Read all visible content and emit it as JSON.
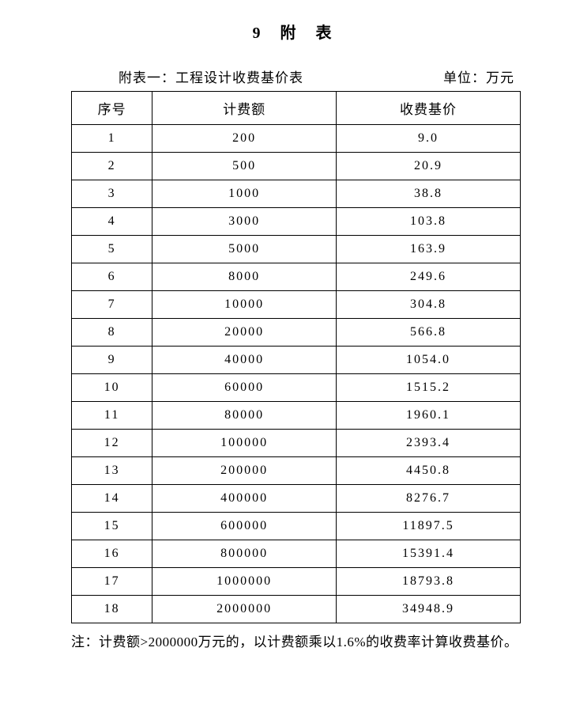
{
  "page_title": "9  附 表",
  "subtitle_left": "附表一：工程设计收费基价表",
  "subtitle_right": "单位：万元",
  "table": {
    "type": "table",
    "columns": [
      "序号",
      "计费额",
      "收费基价"
    ],
    "column_widths": [
      "18%",
      "41%",
      "41%"
    ],
    "border_color": "#000000",
    "background_color": "#ffffff",
    "text_color": "#000000",
    "font_size": 16,
    "header_font_size": 17,
    "rows": [
      [
        "1",
        "200",
        "9.0"
      ],
      [
        "2",
        "500",
        "20.9"
      ],
      [
        "3",
        "1000",
        "38.8"
      ],
      [
        "4",
        "3000",
        "103.8"
      ],
      [
        "5",
        "5000",
        "163.9"
      ],
      [
        "6",
        "8000",
        "249.6"
      ],
      [
        "7",
        "10000",
        "304.8"
      ],
      [
        "8",
        "20000",
        "566.8"
      ],
      [
        "9",
        "40000",
        "1054.0"
      ],
      [
        "10",
        "60000",
        "1515.2"
      ],
      [
        "11",
        "80000",
        "1960.1"
      ],
      [
        "12",
        "100000",
        "2393.4"
      ],
      [
        "13",
        "200000",
        "4450.8"
      ],
      [
        "14",
        "400000",
        "8276.7"
      ],
      [
        "15",
        "600000",
        "11897.5"
      ],
      [
        "16",
        "800000",
        "15391.4"
      ],
      [
        "17",
        "1000000",
        "18793.8"
      ],
      [
        "18",
        "2000000",
        "34948.9"
      ]
    ]
  },
  "footnote": "注：计费额>2000000万元的，以计费额乘以1.6%的收费率计算收费基价。"
}
